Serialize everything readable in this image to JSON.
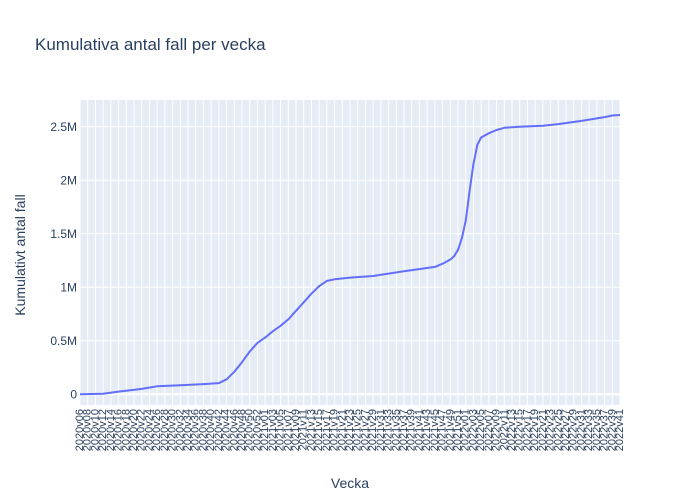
{
  "chart_data": {
    "type": "line",
    "title": "Kumulativa antal fall per vecka",
    "xlabel": "Vecka",
    "ylabel": "Kumulativt antal fall",
    "grid": true,
    "ylim": [
      -100000,
      2750000
    ],
    "y_ticks": [
      {
        "value": 0,
        "label": "0"
      },
      {
        "value": 500000,
        "label": "0.5M"
      },
      {
        "value": 1000000,
        "label": "1M"
      },
      {
        "value": 1500000,
        "label": "1.5M"
      },
      {
        "value": 2000000,
        "label": "2M"
      },
      {
        "value": 2500000,
        "label": "2.5M"
      }
    ],
    "x_tick_labels": [
      "2020v06",
      "2020v08",
      "2020v10",
      "2020v12",
      "2020v14",
      "2020v16",
      "2020v18",
      "2020v20",
      "2020v22",
      "2020v24",
      "2020v26",
      "2020v28",
      "2020v30",
      "2020v32",
      "2020v34",
      "2020v36",
      "2020v38",
      "2020v40",
      "2020v42",
      "2020v44",
      "2020v46",
      "2020v48",
      "2020v50",
      "2020v52",
      "2021v01",
      "2021v03",
      "2021v05",
      "2021v07",
      "2021v09",
      "2021v11",
      "2021v13",
      "2021v15",
      "2021v17",
      "2021v19",
      "2021v21",
      "2021v23",
      "2021v25",
      "2021v27",
      "2021v29",
      "2021v31",
      "2021v33",
      "2021v35",
      "2021v37",
      "2021v39",
      "2021v41",
      "2021v43",
      "2021v45",
      "2021v47",
      "2021v49",
      "2021v51",
      "2022v01",
      "2022v03",
      "2022v05",
      "2022v07",
      "2022v09",
      "2022v11",
      "2022v13",
      "2022v15",
      "2022v17",
      "2022v19",
      "2022v21",
      "2022v23",
      "2022v25",
      "2022v27",
      "2022v29",
      "2022v31",
      "2022v33",
      "2022v35",
      "2022v37",
      "2022v39",
      "2022v41"
    ],
    "series": [
      {
        "color": "#636efa",
        "points": [
          [
            "2020v06",
            0
          ],
          [
            "2020v12",
            5000
          ],
          [
            "2020v16",
            25000
          ],
          [
            "2020v22",
            50000
          ],
          [
            "2020v26",
            75000
          ],
          [
            "2020v32",
            85000
          ],
          [
            "2020v38",
            95000
          ],
          [
            "2020v42",
            105000
          ],
          [
            "2020v44",
            140000
          ],
          [
            "2020v46",
            210000
          ],
          [
            "2020v48",
            300000
          ],
          [
            "2020v50",
            400000
          ],
          [
            "2020v52",
            480000
          ],
          [
            "2021v01",
            530000
          ],
          [
            "2021v03",
            590000
          ],
          [
            "2021v05",
            640000
          ],
          [
            "2021v07",
            700000
          ],
          [
            "2021v09",
            780000
          ],
          [
            "2021v11",
            860000
          ],
          [
            "2021v13",
            940000
          ],
          [
            "2021v15",
            1010000
          ],
          [
            "2021v17",
            1060000
          ],
          [
            "2021v19",
            1075000
          ],
          [
            "2021v23",
            1090000
          ],
          [
            "2021v29",
            1105000
          ],
          [
            "2021v37",
            1150000
          ],
          [
            "2021v45",
            1190000
          ],
          [
            "2021v47",
            1220000
          ],
          [
            "2021v49",
            1260000
          ],
          [
            "2021v50",
            1290000
          ],
          [
            "2021v51",
            1350000
          ],
          [
            "2021v52",
            1460000
          ],
          [
            "2022v01",
            1620000
          ],
          [
            "2022v02",
            1900000
          ],
          [
            "2022v03",
            2150000
          ],
          [
            "2022v04",
            2330000
          ],
          [
            "2022v05",
            2400000
          ],
          [
            "2022v07",
            2440000
          ],
          [
            "2022v09",
            2470000
          ],
          [
            "2022v11",
            2490000
          ],
          [
            "2022v15",
            2500000
          ],
          [
            "2022v21",
            2510000
          ],
          [
            "2022v25",
            2525000
          ],
          [
            "2022v31",
            2555000
          ],
          [
            "2022v37",
            2590000
          ],
          [
            "2022v39",
            2605000
          ],
          [
            "2022v41",
            2610000
          ]
        ]
      }
    ]
  }
}
